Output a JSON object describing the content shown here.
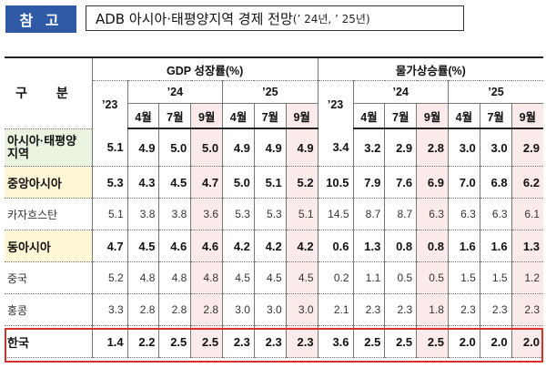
{
  "header": {
    "badge": "참 고",
    "title": "ADB 아시아·태평양지역 경제 전망",
    "title_sub": "(’ 24년, ’ 25년)"
  },
  "table": {
    "row_header": "구 분",
    "groups": [
      "GDP 성장률(%)",
      "물가상승률(%)"
    ],
    "years": [
      "’23",
      "’24",
      "’25"
    ],
    "months": [
      "4월",
      "7월",
      "9월"
    ],
    "rows": [
      {
        "label": "아시아·태평양\n지역",
        "gdp": [
          "5.1",
          "4.9",
          "5.0",
          "5.0",
          "4.9",
          "4.9",
          "4.9"
        ],
        "cpi": [
          "3.4",
          "3.2",
          "2.9",
          "2.8",
          "3.0",
          "3.0",
          "2.9"
        ]
      },
      {
        "label": "중앙아시아",
        "gdp": [
          "5.3",
          "4.3",
          "4.5",
          "4.7",
          "5.0",
          "5.1",
          "5.2"
        ],
        "cpi": [
          "10.5",
          "7.9",
          "7.6",
          "6.9",
          "7.0",
          "6.8",
          "6.2"
        ]
      },
      {
        "label": "카자흐스탄",
        "gdp": [
          "5.1",
          "3.8",
          "3.8",
          "3.6",
          "5.3",
          "5.3",
          "5.1"
        ],
        "cpi": [
          "14.5",
          "8.7",
          "8.7",
          "6.3",
          "6.3",
          "6.3",
          "6.1"
        ]
      },
      {
        "label": "동아시아",
        "gdp": [
          "4.7",
          "4.5",
          "4.6",
          "4.6",
          "4.2",
          "4.2",
          "4.2"
        ],
        "cpi": [
          "0.6",
          "1.3",
          "0.8",
          "0.8",
          "1.6",
          "1.6",
          "1.3"
        ]
      },
      {
        "label": "중국",
        "gdp": [
          "5.2",
          "4.8",
          "4.8",
          "4.8",
          "4.5",
          "4.5",
          "4.5"
        ],
        "cpi": [
          "0.2",
          "1.1",
          "0.5",
          "0.5",
          "1.5",
          "1.5",
          "1.2"
        ]
      },
      {
        "label": "홍콩",
        "gdp": [
          "3.3",
          "2.8",
          "2.8",
          "2.8",
          "3.0",
          "3.0",
          "3.0"
        ],
        "cpi": [
          "2.1",
          "2.3",
          "2.3",
          "1.8",
          "2.3",
          "2.3",
          "2.3"
        ]
      },
      {
        "label": "한국",
        "gdp": [
          "1.4",
          "2.2",
          "2.5",
          "2.5",
          "2.3",
          "2.3",
          "2.3"
        ],
        "cpi": [
          "3.6",
          "2.5",
          "2.5",
          "2.5",
          "2.0",
          "2.0",
          "2.0"
        ]
      }
    ]
  }
}
